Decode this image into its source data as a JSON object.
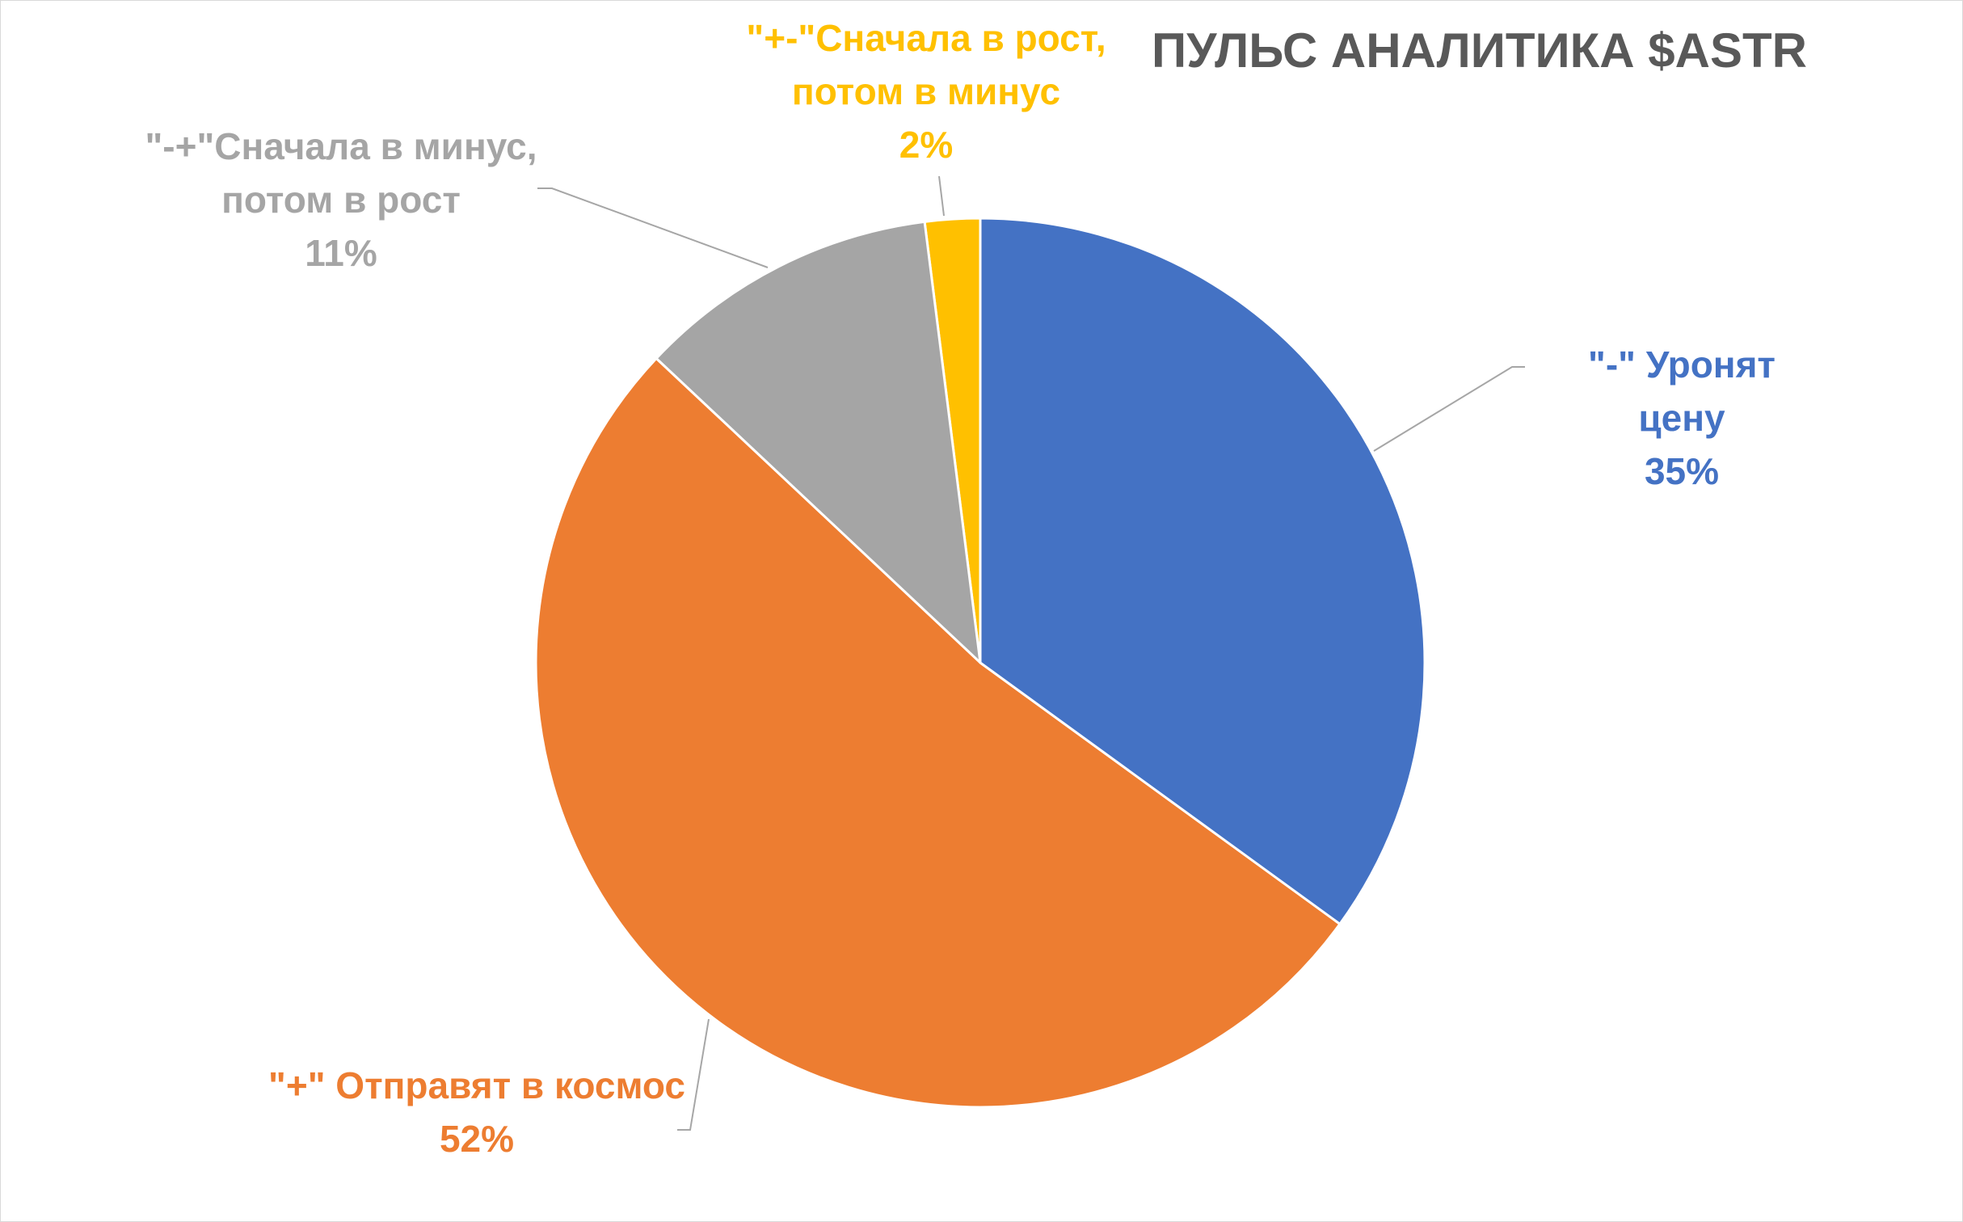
{
  "chart_data": {
    "type": "pie",
    "title": "ПУЛЬС АНАЛИТИКА $ASTR",
    "categories": [
      "\"-\" Уронят цену",
      "\"+\" Отправят в космос",
      "\"-+\"Сначала в минус,\nпотом в рост",
      "\"+-\"Сначала в рост,\nпотом в минус"
    ],
    "values": [
      35,
      52,
      11,
      2
    ],
    "value_labels": [
      "35%",
      "52%",
      "11%",
      "2%"
    ],
    "colors": [
      "#4472c4",
      "#ed7d31",
      "#a5a5a5",
      "#ffc000"
    ]
  }
}
